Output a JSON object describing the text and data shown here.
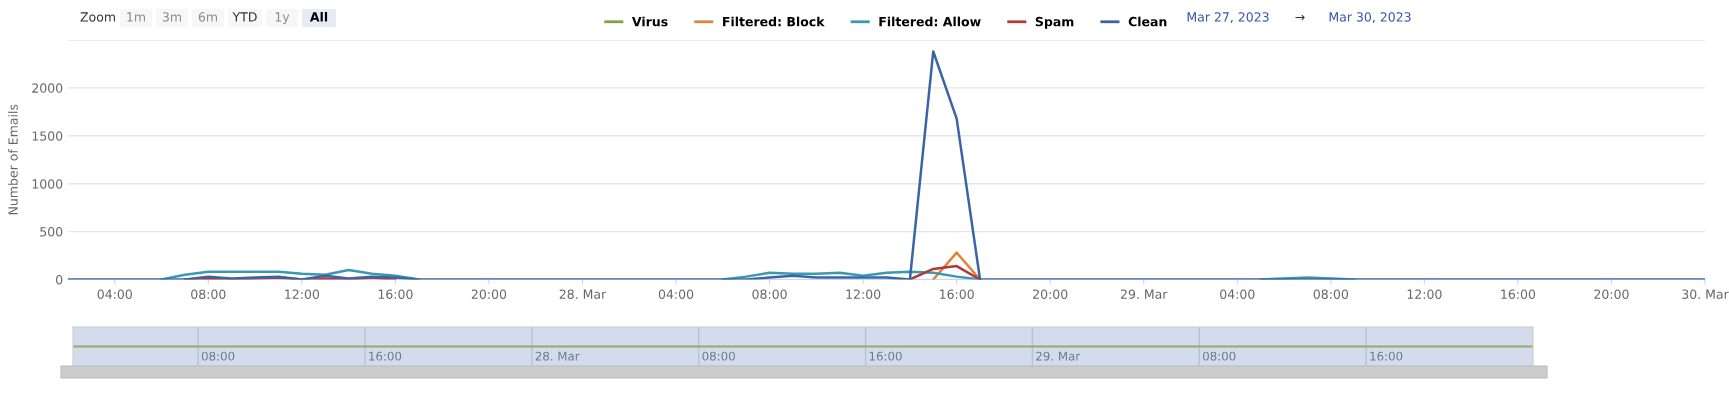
{
  "chart_data": [
    {
      "type": "line",
      "ylabel": "Number of Emails",
      "annotations": [
        "Zoom",
        "1m",
        "3m",
        "6m",
        "YTD",
        "1y",
        "All",
        "Mar 27, 2023",
        "→",
        "Mar 30, 2023"
      ],
      "x": [
        "2023-03-27T02:00",
        "2023-03-27T03:00",
        "2023-03-27T04:00",
        "2023-03-27T05:00",
        "2023-03-27T06:00",
        "2023-03-27T07:00",
        "2023-03-27T08:00",
        "2023-03-27T09:00",
        "2023-03-27T10:00",
        "2023-03-27T11:00",
        "2023-03-27T12:00",
        "2023-03-27T13:00",
        "2023-03-27T14:00",
        "2023-03-27T15:00",
        "2023-03-27T16:00",
        "2023-03-27T17:00",
        "2023-03-27T18:00",
        "2023-03-27T19:00",
        "2023-03-27T20:00",
        "2023-03-27T21:00",
        "2023-03-27T22:00",
        "2023-03-27T23:00",
        "2023-03-28T00:00",
        "2023-03-28T01:00",
        "2023-03-28T02:00",
        "2023-03-28T03:00",
        "2023-03-28T04:00",
        "2023-03-28T05:00",
        "2023-03-28T06:00",
        "2023-03-28T07:00",
        "2023-03-28T08:00",
        "2023-03-28T09:00",
        "2023-03-28T10:00",
        "2023-03-28T11:00",
        "2023-03-28T12:00",
        "2023-03-28T13:00",
        "2023-03-28T14:00",
        "2023-03-28T15:00",
        "2023-03-28T16:00",
        "2023-03-28T17:00",
        "2023-03-28T18:00",
        "2023-03-28T19:00",
        "2023-03-28T20:00",
        "2023-03-28T21:00",
        "2023-03-28T22:00",
        "2023-03-28T23:00",
        "2023-03-29T00:00",
        "2023-03-29T01:00",
        "2023-03-29T02:00",
        "2023-03-29T03:00",
        "2023-03-29T04:00",
        "2023-03-29T05:00",
        "2023-03-29T06:00",
        "2023-03-29T07:00",
        "2023-03-29T08:00",
        "2023-03-29T09:00",
        "2023-03-29T10:00",
        "2023-03-29T11:00",
        "2023-03-29T12:00",
        "2023-03-29T13:00",
        "2023-03-29T14:00",
        "2023-03-29T15:00",
        "2023-03-29T16:00",
        "2023-03-29T17:00",
        "2023-03-29T18:00",
        "2023-03-29T19:00",
        "2023-03-29T20:00",
        "2023-03-29T21:00",
        "2023-03-29T22:00",
        "2023-03-29T23:00",
        "2023-03-30T00:00"
      ],
      "series": [
        {
          "name": "Virus",
          "color": "#7ea33c",
          "values": [
            null,
            null,
            null,
            null,
            null,
            null,
            null,
            null,
            null,
            null,
            null,
            null,
            null,
            null,
            null,
            null,
            null,
            null,
            null,
            null,
            null,
            null,
            null,
            null,
            null,
            null,
            null,
            null,
            null,
            null,
            null,
            null,
            null,
            null,
            null,
            null,
            null,
            null,
            null,
            null,
            null,
            null,
            null,
            null,
            null,
            null,
            null,
            null,
            null,
            null,
            null,
            null,
            null,
            null,
            null,
            null,
            null,
            null,
            null,
            null,
            null,
            null,
            null,
            null,
            null,
            null,
            null,
            null,
            null,
            null,
            null
          ]
        },
        {
          "name": "Filtered: Block",
          "color": "#e0823a",
          "values": [
            null,
            null,
            null,
            null,
            null,
            null,
            null,
            null,
            null,
            null,
            null,
            null,
            null,
            null,
            null,
            null,
            null,
            null,
            null,
            null,
            null,
            null,
            null,
            null,
            null,
            null,
            null,
            null,
            null,
            null,
            null,
            null,
            null,
            null,
            null,
            null,
            null,
            0,
            280,
            0,
            null,
            null,
            null,
            null,
            null,
            null,
            null,
            null,
            null,
            null,
            null,
            null,
            null,
            null,
            null,
            null,
            null,
            null,
            null,
            null,
            null,
            null,
            null,
            null,
            null,
            null,
            null,
            null,
            null,
            null,
            null
          ]
        },
        {
          "name": "Filtered: Allow",
          "color": "#3a98b3",
          "values": [
            null,
            null,
            null,
            null,
            0,
            50,
            80,
            80,
            80,
            80,
            60,
            50,
            100,
            60,
            40,
            0,
            null,
            null,
            null,
            null,
            null,
            null,
            null,
            null,
            null,
            null,
            null,
            null,
            0,
            30,
            70,
            60,
            60,
            70,
            40,
            70,
            80,
            70,
            30,
            0,
            null,
            null,
            null,
            null,
            null,
            null,
            null,
            null,
            null,
            null,
            null,
            0,
            10,
            20,
            10,
            0,
            null,
            null,
            null,
            null,
            null,
            null,
            null,
            null,
            null,
            null,
            null,
            null,
            null,
            null,
            null
          ]
        },
        {
          "name": "Spam",
          "color": "#b03a3a",
          "values": [
            null,
            null,
            null,
            null,
            null,
            0,
            10,
            0,
            10,
            20,
            0,
            10,
            0,
            20,
            0,
            null,
            null,
            null,
            null,
            null,
            null,
            null,
            null,
            null,
            null,
            null,
            null,
            null,
            null,
            null,
            null,
            null,
            null,
            null,
            null,
            null,
            0,
            110,
            140,
            0,
            null,
            null,
            null,
            null,
            null,
            null,
            null,
            null,
            null,
            null,
            null,
            null,
            null,
            null,
            null,
            null,
            null,
            null,
            null,
            null,
            null,
            null,
            null,
            null,
            null,
            null,
            null,
            null,
            null,
            null,
            null
          ]
        },
        {
          "name": "Clean",
          "color": "#3a65a5",
          "values": [
            0,
            0,
            0,
            0,
            0,
            0,
            30,
            10,
            20,
            30,
            0,
            40,
            10,
            30,
            20,
            0,
            0,
            0,
            0,
            0,
            0,
            0,
            0,
            0,
            0,
            0,
            0,
            0,
            0,
            0,
            20,
            40,
            20,
            20,
            20,
            20,
            0,
            2380,
            1680,
            0,
            0,
            0,
            0,
            0,
            0,
            0,
            0,
            0,
            0,
            0,
            0,
            0,
            0,
            0,
            0,
            0,
            0,
            0,
            0,
            0,
            0,
            0,
            0,
            0,
            0,
            0,
            0,
            0,
            0,
            0,
            0
          ]
        }
      ],
      "xlim": [
        "2023-03-27T02:00",
        "2023-03-30T00:00"
      ],
      "xticks": [
        {
          "value": "2023-03-27T04:00",
          "label": "04:00"
        },
        {
          "value": "2023-03-27T08:00",
          "label": "08:00"
        },
        {
          "value": "2023-03-27T12:00",
          "label": "12:00"
        },
        {
          "value": "2023-03-27T16:00",
          "label": "16:00"
        },
        {
          "value": "2023-03-27T20:00",
          "label": "20:00"
        },
        {
          "value": "2023-03-28T00:00",
          "label": "28. Mar"
        },
        {
          "value": "2023-03-28T04:00",
          "label": "04:00"
        },
        {
          "value": "2023-03-28T08:00",
          "label": "08:00"
        },
        {
          "value": "2023-03-28T12:00",
          "label": "12:00"
        },
        {
          "value": "2023-03-28T16:00",
          "label": "16:00"
        },
        {
          "value": "2023-03-28T20:00",
          "label": "20:00"
        },
        {
          "value": "2023-03-29T00:00",
          "label": "29. Mar"
        },
        {
          "value": "2023-03-29T04:00",
          "label": "04:00"
        },
        {
          "value": "2023-03-29T08:00",
          "label": "08:00"
        },
        {
          "value": "2023-03-29T12:00",
          "label": "12:00"
        },
        {
          "value": "2023-03-29T16:00",
          "label": "16:00"
        },
        {
          "value": "2023-03-29T20:00",
          "label": "20:00"
        },
        {
          "value": "2023-03-30T00:00",
          "label": "30. Mar"
        }
      ],
      "ylim": [
        0,
        2500
      ],
      "yticks": [
        0,
        500,
        1000,
        1500,
        2000,
        {
          "value": 2500,
          "label": null
        }
      ],
      "grid": "y",
      "legend": "top",
      "marker": "none",
      "line_style": "solid"
    },
    {
      "type": "other",
      "annotations": [
        "08:00",
        "16:00",
        "28. Mar",
        "08:00",
        "16:00",
        "29. Mar",
        "08:00",
        "16:00"
      ]
    }
  ]
}
